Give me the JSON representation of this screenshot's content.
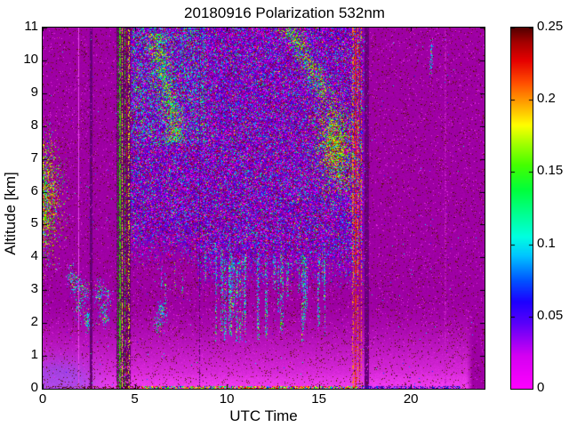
{
  "chart_data": {
    "type": "heatmap",
    "title": "20180916 Polarization 532nm",
    "xlabel": "UTC Time",
    "ylabel": "Altitude [km]",
    "xlim": [
      0,
      24
    ],
    "ylim": [
      0,
      11
    ],
    "xticks": {
      "values": [
        0,
        5,
        10,
        15,
        20
      ],
      "labels": [
        "0",
        "5",
        "10",
        "15",
        "20"
      ]
    },
    "yticks": {
      "values": [
        0,
        1,
        2,
        3,
        4,
        5,
        6,
        7,
        8,
        9,
        10,
        11
      ],
      "labels": [
        "0",
        "1",
        "2",
        "3",
        "4",
        "5",
        "6",
        "7",
        "8",
        "9",
        "10",
        "11"
      ]
    },
    "colorbar": {
      "min": 0,
      "max": 0.25,
      "ticks": [
        0,
        0.05,
        0.1,
        0.15,
        0.2,
        0.25
      ],
      "labels": [
        "0",
        "0.05",
        "0.1",
        "0.15",
        "0.2",
        "0.25"
      ],
      "stops": [
        [
          0.0,
          "#FF00FF"
        ],
        [
          0.09,
          "#D500F2"
        ],
        [
          0.18,
          "#5A00FA"
        ],
        [
          0.24,
          "#1E00FF"
        ],
        [
          0.3,
          "#0055FF"
        ],
        [
          0.37,
          "#00C8FF"
        ],
        [
          0.42,
          "#00FFE1"
        ],
        [
          0.48,
          "#00FF96"
        ],
        [
          0.55,
          "#00FF3C"
        ],
        [
          0.62,
          "#46FF00"
        ],
        [
          0.68,
          "#A5FF00"
        ],
        [
          0.73,
          "#FFFF00"
        ],
        [
          0.79,
          "#FFA500"
        ],
        [
          0.85,
          "#FF4B00"
        ],
        [
          0.91,
          "#E60000"
        ],
        [
          0.96,
          "#A50000"
        ],
        [
          1.0,
          "#550000"
        ]
      ]
    },
    "render": {
      "seed": 20180916,
      "background": "#9E00A4",
      "day": {
        "t0": 4.45,
        "t1": 17.52,
        "edge_in": 0.4,
        "edge_out": 0.22,
        "density": 0.62,
        "base": "#7A00BE",
        "bounds": [
          {
            "t_max": 8.4,
            "alt": 3.6,
            "ramp": 1.4
          },
          {
            "t_max": 17.52,
            "alt": 2.9,
            "ramp": 1.5
          }
        ]
      },
      "high_cyan_region": {
        "t0": 4.9,
        "t1": 8.9,
        "a0": 7.4,
        "a1": 11,
        "density": 0.16
      },
      "glow": {
        "top": 2.6,
        "t_end": 23.2,
        "color": "#F23CF2",
        "deep_color": "#FA46FA",
        "blue_patch": {
          "t_mu": 0.9,
          "t_sigma": 1.2,
          "alt_mu": 0.1,
          "alt_sigma": 0.5,
          "color": "#7B55E8",
          "max": 0.55
        }
      },
      "night_speckle": {
        "dark_density": 0.045,
        "bright_density": 0.02,
        "bright": "#E52BE5",
        "rare_density": 0.002
      },
      "streaks": {
        "count": 30,
        "t0": 8.5,
        "t_span": 7.3,
        "top_base": 3.5,
        "top_var": 1.1,
        "len_base": 0.9,
        "len_var": 2.2,
        "width_base": 0.03,
        "width_var": 0.05,
        "density": 0.38,
        "early": {
          "count": 4,
          "t0": 5.0,
          "t_span": 2.8,
          "top_base": 3.0,
          "top_var": 0.8,
          "len_base": 0.5,
          "len_var": 1.0,
          "density": 0.3
        }
      },
      "bottom_line": {
        "alt": 0.07,
        "segments": [
          {
            "t0": 0.2,
            "t1": 5.4,
            "palette": "darkdash",
            "density": 0.35
          },
          {
            "t0": 5.4,
            "t1": 17.1,
            "palette": "rainbow",
            "density": 0.85
          },
          {
            "t0": 17.1,
            "t1": 22.7,
            "palette": "bluedash",
            "density": 0.5
          }
        ]
      },
      "palettes": {
        "day": [
          [
            "#5A00E0",
            0.16
          ],
          [
            "#2807FF",
            0.15
          ],
          [
            "#4400C8",
            0.09
          ],
          [
            "#00C3FF",
            0.08
          ],
          [
            "#00E8D0",
            0.035
          ],
          [
            "#00E650",
            0.045
          ],
          [
            "#FF00FF",
            0.13
          ],
          [
            "#E100D8",
            0.07
          ],
          [
            "#7D0A00",
            0.1
          ],
          [
            "#D90000",
            0.03
          ],
          [
            "#FF8C00",
            0.012
          ],
          [
            "#E8F000",
            0.013
          ],
          [
            "#52006B",
            0.08
          ],
          [
            "#9000B8",
            0.06
          ]
        ],
        "hot": [
          [
            "#30D800",
            0.26
          ],
          [
            "#D8E800",
            0.25
          ],
          [
            "#FF9100",
            0.1
          ],
          [
            "#D42000",
            0.12
          ],
          [
            "#7A1000",
            0.08
          ],
          [
            "#00E0FF",
            0.07
          ],
          [
            "#00FF88",
            0.06
          ],
          [
            "#2B00FF",
            0.06
          ]
        ],
        "hot2": [
          [
            "#30D800",
            0.3
          ],
          [
            "#00FF88",
            0.12
          ],
          [
            "#D8E800",
            0.22
          ],
          [
            "#FF9100",
            0.06
          ],
          [
            "#D42000",
            0.08
          ],
          [
            "#00C8FF",
            0.12
          ],
          [
            "#2B00FF",
            0.1
          ]
        ],
        "cool": [
          [
            "#00CCFF",
            0.3
          ],
          [
            "#00FF99",
            0.2
          ],
          [
            "#2B66FF",
            0.2
          ],
          [
            "#30E800",
            0.12
          ],
          [
            "#E8F000",
            0.08
          ],
          [
            "#FF00FF",
            0.1
          ]
        ],
        "cool2": [
          [
            "#00C8FF",
            0.35
          ],
          [
            "#00FFAA",
            0.25
          ],
          [
            "#30E800",
            0.22
          ],
          [
            "#A0FF00",
            0.08
          ],
          [
            "#2B00FF",
            0.1
          ]
        ],
        "rainbow": [
          [
            "#FF0000",
            0.2
          ],
          [
            "#FF9900",
            0.15
          ],
          [
            "#FFFF00",
            0.15
          ],
          [
            "#00FF00",
            0.15
          ],
          [
            "#00CCFF",
            0.15
          ],
          [
            "#0000FF",
            0.1
          ],
          [
            "#FF00FF",
            0.1
          ]
        ],
        "bluedash": [
          [
            "#2200CC",
            0.4
          ],
          [
            "#0044FF",
            0.2
          ],
          [
            "#440088",
            0.25
          ],
          [
            "#7700AA",
            0.15
          ]
        ],
        "darkdash": [
          [
            "#550000",
            0.5
          ],
          [
            "#330044",
            0.3
          ],
          [
            "#7A3300",
            0.2
          ]
        ],
        "darkspeck": [
          [
            "#5E1200",
            0.45
          ],
          [
            "#4A0A20",
            0.3
          ],
          [
            "#701C00",
            0.25
          ]
        ]
      },
      "blobs": [
        {
          "type": "edge",
          "t_sigma": 0.55,
          "alt_mu": 5.85,
          "alt_sigma": 0.95,
          "peak": 0.88,
          "palette": "hot"
        },
        {
          "type": "streak",
          "t_start": 6.25,
          "t_end": 7.2,
          "alt_start": 10.45,
          "alt_end": 7.85,
          "t_sigma": 0.3,
          "peak": 0.55,
          "palette": "hot2"
        },
        {
          "type": "streak",
          "t_start": 13.45,
          "t_end": 15.05,
          "alt_start": 11.0,
          "alt_end": 9.25,
          "t_sigma": 0.38,
          "peak": 0.5,
          "palette": "hot2"
        },
        {
          "type": "ellipse",
          "t_mu": 15.9,
          "alt_mu": 7.35,
          "t_sigma": 0.55,
          "alt_sigma": 0.8,
          "tilt": 0.12,
          "peak": 0.8,
          "palette": "hot"
        },
        {
          "type": "cluster",
          "points": [
            [
              1.9,
              3.15
            ],
            [
              2.25,
              2.95
            ],
            [
              1.6,
              3.35
            ],
            [
              3.1,
              2.95
            ],
            [
              3.5,
              2.8
            ],
            [
              2.45,
              2.05
            ],
            [
              3.35,
              2.25
            ],
            [
              6.5,
              2.35
            ],
            [
              6.3,
              2.05
            ],
            [
              2.0,
              2.5
            ]
          ],
          "t_sigma": 0.16,
          "alt_sigma": 0.2,
          "peak": 0.55,
          "palette": "cool"
        },
        {
          "type": "cluster",
          "points": [
            [
              21.1,
              10.0
            ],
            [
              21.12,
              10.3
            ]
          ],
          "t_sigma": 0.05,
          "alt_sigma": 0.25,
          "peak": 0.6,
          "palette": "cool"
        }
      ],
      "stripes": [
        {
          "t0": 1.92,
          "t1": 2.0,
          "color": "#E648E6",
          "density": 1.0
        },
        {
          "t0": 2.58,
          "t1": 2.72,
          "color": "#66007A",
          "density": 0.95
        },
        {
          "t0": 4.02,
          "t1": 4.76,
          "color": "#5C0066",
          "density": 0.75
        },
        {
          "t0": 4.06,
          "t1": 4.12,
          "color": "#1A8A00",
          "density": 0.6
        },
        {
          "t0": 4.17,
          "t1": 4.25,
          "color": "#2FD400",
          "density": 0.75
        },
        {
          "t0": 4.3,
          "t1": 4.37,
          "color": "#D8E800",
          "density": 0.55
        },
        {
          "t0": 4.42,
          "t1": 4.5,
          "color": "#2FD400",
          "density": 0.5
        },
        {
          "t0": 4.54,
          "t1": 4.6,
          "color": "#D42000",
          "density": 0.35
        },
        {
          "t0": 4.63,
          "t1": 4.71,
          "color": "#E8F000",
          "density": 0.3
        },
        {
          "t0": 8.49,
          "t1": 8.56,
          "color": "#5E0070",
          "density": 0.55
        },
        {
          "t0": 16.82,
          "t1": 16.9,
          "color": "#FF8C00",
          "density": 0.45
        },
        {
          "t0": 16.95,
          "t1": 17.05,
          "color": "#E83000",
          "density": 0.6
        },
        {
          "t0": 17.08,
          "t1": 17.14,
          "color": "#FF9900",
          "density": 0.5
        },
        {
          "t0": 17.17,
          "t1": 17.24,
          "color": "#D42000",
          "density": 0.55
        },
        {
          "t0": 17.28,
          "t1": 17.35,
          "color": "#FF8C00",
          "density": 0.4
        },
        {
          "t0": 17.5,
          "t1": 17.7,
          "color": "#66007A",
          "density": 0.9
        },
        {
          "t0": 21.82,
          "t1": 21.9,
          "color": "#C41FC4",
          "density": 0.45
        }
      ]
    }
  }
}
